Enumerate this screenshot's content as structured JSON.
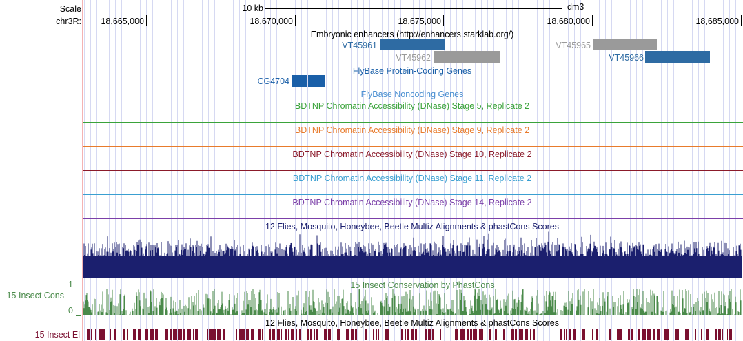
{
  "ruler": {
    "scale_label": "Scale",
    "chrom_label": "chr3R:",
    "scale_bar_text": "10 kb",
    "assembly": "dm3",
    "positions": [
      "18,665,000",
      "18,670,000",
      "18,675,000",
      "18,680,000",
      "18,685,000"
    ]
  },
  "tracks": {
    "enhancers": {
      "title": "Embryonic enhancers (http://enhancers.starklab.org/)",
      "items": [
        "VT45961",
        "VT45962",
        "VT45965",
        "VT45966"
      ],
      "colors": {
        "highlight": "#2e6ba3",
        "dim": "#9a9a9a"
      }
    },
    "flybase_coding": {
      "title": "FlyBase Protein-Coding Genes",
      "gene": "CG4704",
      "color": "#1a5fa8"
    },
    "flybase_noncoding": {
      "title": "FlyBase Noncoding Genes",
      "color": "#4a8fd1"
    },
    "dnase": [
      {
        "title": "BDTNP Chromatin Accessibility (DNase) Stage 5, Replicate 2",
        "color": "#3aa33a"
      },
      {
        "title": "BDTNP Chromatin Accessibility (DNase) Stage 9, Replicate 2",
        "color": "#e87b2c"
      },
      {
        "title": "BDTNP Chromatin Accessibility (DNase) Stage 10, Replicate 2",
        "color": "#8b1a2a"
      },
      {
        "title": "BDTNP Chromatin Accessibility (DNase) Stage 11, Replicate 2",
        "color": "#3a9fd1"
      },
      {
        "title": "BDTNP Chromatin Accessibility (DNase) Stage 14, Replicate 2",
        "color": "#7b3fa8"
      }
    ],
    "multiz": {
      "title": "12 Flies, Mosquito, Honeybee, Beetle Multiz Alignments & phastCons Scores",
      "color": "#1b1f6e"
    },
    "insect_cons": {
      "title": "15 Insect Conservation by PhastCons",
      "side_label": "15 Insect Cons",
      "y_max": "1",
      "y_min": "0",
      "color": "#4a8a4a"
    },
    "multiz2": {
      "title": "12 Flies, Mosquito, Honeybee, Beetle Multiz Alignments & phastCons Scores"
    },
    "insect_el": {
      "side_label": "15 Insect El",
      "color": "#7a1030"
    }
  }
}
